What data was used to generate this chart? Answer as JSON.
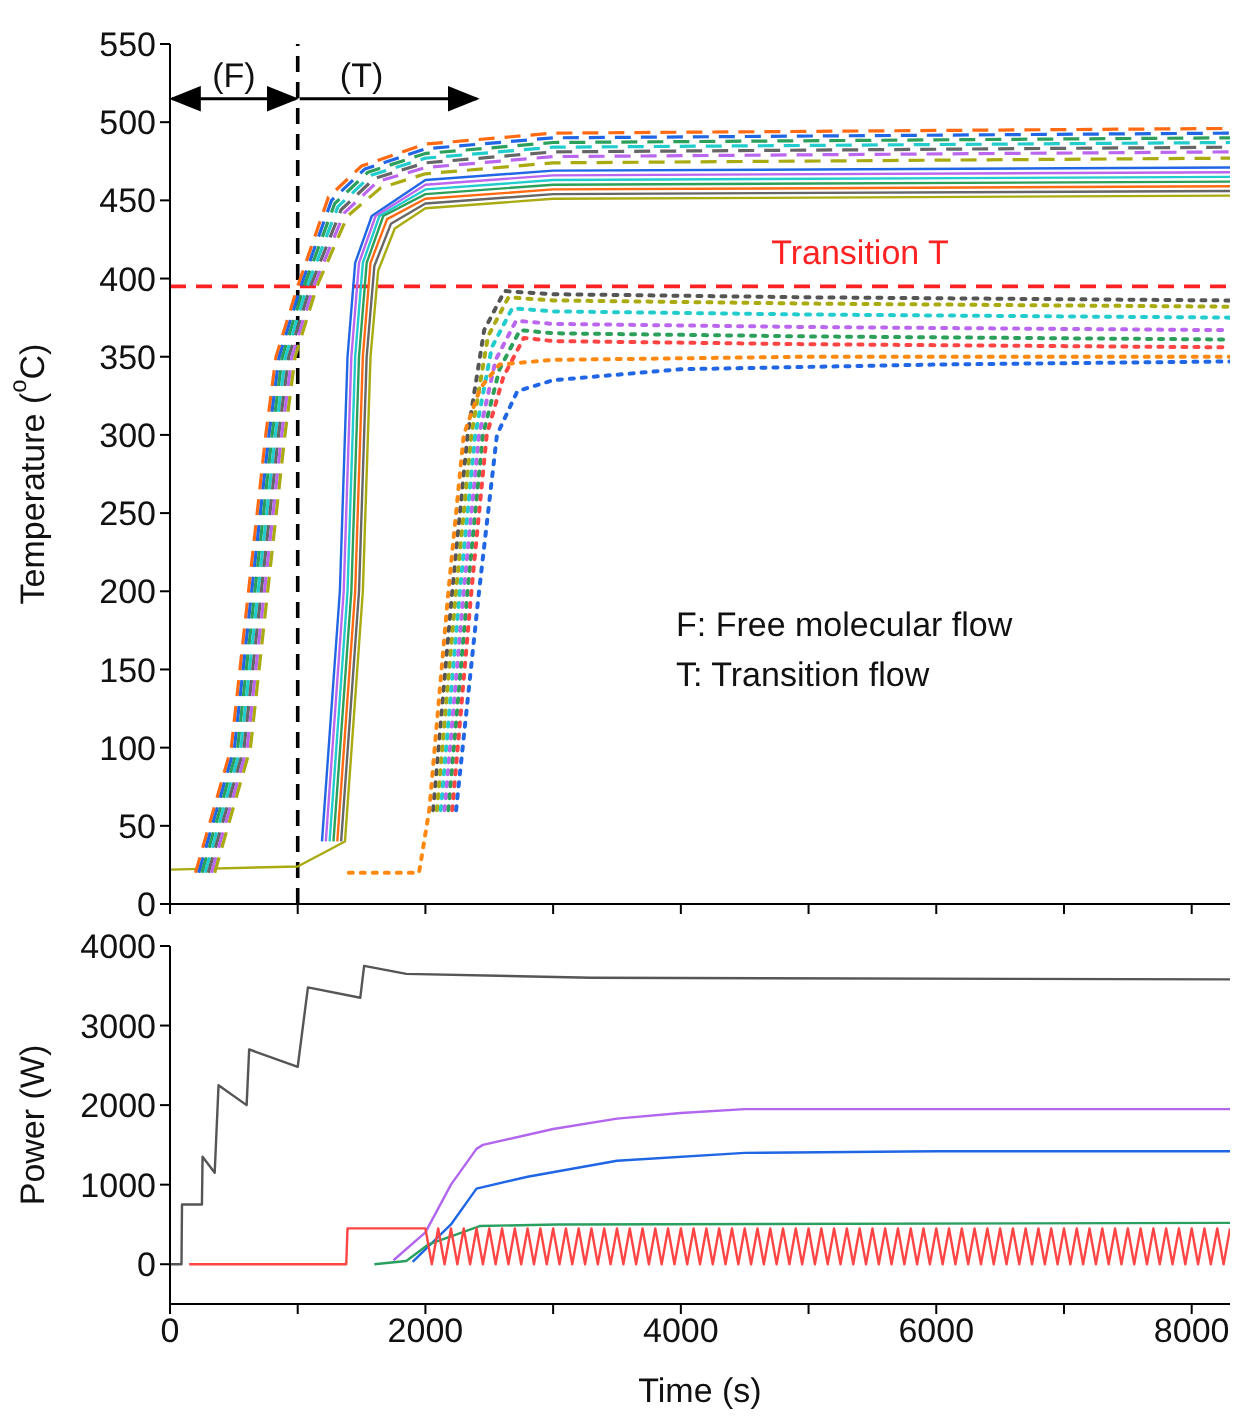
{
  "chart_data": [
    {
      "type": "line",
      "ylabel": "Temperature ($^{o}$C)",
      "xlim": [
        0,
        8300
      ],
      "xticks": [
        0,
        1000,
        2000,
        3000,
        4000,
        5000,
        6000,
        7000,
        8000
      ],
      "ylim": [
        0,
        550
      ],
      "yticks": [
        0,
        50,
        100,
        150,
        200,
        250,
        300,
        350,
        400,
        450,
        500,
        550
      ],
      "tick_labels": "y",
      "grid": false,
      "marker": "none",
      "ref_lines": [
        {
          "axis": "x",
          "value": 1000,
          "color": "#000000",
          "line_style": "dashed"
        },
        {
          "axis": "y",
          "value": 395,
          "label": "Transition T",
          "color": "#ff2222",
          "line_style": "dashed"
        }
      ],
      "annotations": [
        "(F)",
        "(T)",
        "F: Free molecular flow",
        "T: Transition flow"
      ],
      "series": [
        {
          "color": "#555555",
          "line_style": "dotted",
          "x": [
            2060,
            2210,
            2330,
            2460,
            2620,
            3000,
            5000,
            8300
          ],
          "values": [
            60,
            200,
            300,
            367,
            392,
            390,
            388,
            386
          ]
        },
        {
          "color": "#aaaa11",
          "line_style": "dotted",
          "x": [
            2090,
            2240,
            2360,
            2490,
            2650,
            3000,
            5000,
            8300
          ],
          "values": [
            60,
            200,
            300,
            363,
            388,
            386,
            384,
            382
          ]
        },
        {
          "color": "#22cccc",
          "line_style": "dotted",
          "x": [
            2120,
            2270,
            2390,
            2520,
            2680,
            3000,
            5000,
            8300
          ],
          "values": [
            60,
            200,
            300,
            356,
            381,
            379,
            377,
            375
          ]
        },
        {
          "color": "#bb66ee",
          "line_style": "dotted",
          "x": [
            2150,
            2300,
            2420,
            2550,
            2710,
            3000,
            5000,
            8300
          ],
          "values": [
            60,
            200,
            300,
            348,
            373,
            371,
            369,
            367
          ]
        },
        {
          "color": "#2ca05a",
          "line_style": "dotted",
          "x": [
            2180,
            2330,
            2450,
            2580,
            2740,
            3000,
            5000,
            8300
          ],
          "values": [
            60,
            200,
            300,
            342,
            367,
            365,
            363,
            361
          ]
        },
        {
          "color": "#ff4444",
          "line_style": "dotted",
          "x": [
            2210,
            2360,
            2480,
            2610,
            2770,
            3000,
            5000,
            8300
          ],
          "values": [
            60,
            200,
            300,
            337,
            362,
            360,
            358,
            356
          ]
        },
        {
          "color": "#2166e5",
          "line_style": "dotted",
          "x": [
            2240,
            2420,
            2560,
            2720,
            3000,
            4000,
            6000,
            8300
          ],
          "values": [
            60,
            200,
            300,
            328,
            335,
            342,
            345,
            347
          ]
        },
        {
          "color": "#ff8811",
          "line_style": "dotted",
          "x": [
            1400,
            1950,
            2030,
            2180,
            2300,
            2430,
            2580,
            3000,
            5000,
            8300
          ],
          "values": [
            20,
            20,
            60,
            200,
            300,
            330,
            345,
            348,
            350,
            350
          ]
        },
        {
          "color": "#2166e5",
          "line_style": "solid",
          "x": [
            1190,
            1330,
            1390,
            1450,
            1580,
            2000,
            3000,
            8300
          ],
          "values": [
            40,
            200,
            350,
            410,
            440,
            463,
            469,
            471
          ]
        },
        {
          "color": "#bb66ee",
          "line_style": "solid",
          "x": [
            1220,
            1360,
            1420,
            1480,
            1610,
            2000,
            3000,
            8300
          ],
          "values": [
            40,
            200,
            350,
            410,
            440,
            460,
            466,
            468
          ]
        },
        {
          "color": "#22cccc",
          "line_style": "solid",
          "x": [
            1250,
            1390,
            1450,
            1510,
            1640,
            2000,
            3000,
            8300
          ],
          "values": [
            40,
            200,
            350,
            410,
            440,
            457,
            463,
            465
          ]
        },
        {
          "color": "#2ca05a",
          "line_style": "solid",
          "x": [
            1280,
            1420,
            1480,
            1540,
            1670,
            2000,
            3000,
            8300
          ],
          "values": [
            40,
            200,
            350,
            410,
            440,
            454,
            460,
            462
          ]
        },
        {
          "color": "#ff6a13",
          "line_style": "solid",
          "x": [
            1310,
            1450,
            1510,
            1570,
            1700,
            2000,
            3000,
            8300
          ],
          "values": [
            40,
            200,
            350,
            410,
            438,
            451,
            457,
            459
          ]
        },
        {
          "color": "#666666",
          "line_style": "solid",
          "x": [
            1340,
            1480,
            1540,
            1600,
            1730,
            2000,
            3000,
            8300
          ],
          "values": [
            40,
            200,
            350,
            408,
            435,
            448,
            454,
            456
          ]
        },
        {
          "color": "#aaaa11",
          "line_style": "solid",
          "x": [
            0,
            1000,
            1370,
            1510,
            1570,
            1630,
            1760,
            2000,
            3000,
            8300
          ],
          "values": [
            22,
            24,
            40,
            200,
            350,
            405,
            432,
            445,
            451,
            453
          ]
        },
        {
          "color": "#ff6a13",
          "line_style": "dashed",
          "x": [
            200,
            480,
            750,
            830,
            1000,
            1240,
            1500,
            2000,
            3000,
            8300
          ],
          "values": [
            20,
            100,
            300,
            350,
            395,
            452,
            472,
            486,
            493,
            496
          ]
        },
        {
          "color": "#2166e5",
          "line_style": "dashed",
          "x": [
            225,
            505,
            775,
            855,
            1025,
            1265,
            1525,
            2000,
            3000,
            8300
          ],
          "values": [
            20,
            100,
            300,
            350,
            395,
            450,
            470,
            483,
            490,
            493
          ]
        },
        {
          "color": "#2ca05a",
          "line_style": "dashed",
          "x": [
            250,
            530,
            800,
            880,
            1050,
            1290,
            1550,
            2000,
            3000,
            8300
          ],
          "values": [
            20,
            100,
            300,
            350,
            395,
            448,
            468,
            480,
            487,
            490
          ]
        },
        {
          "color": "#22cccc",
          "line_style": "dashed",
          "x": [
            275,
            555,
            825,
            905,
            1075,
            1315,
            1575,
            2000,
            3000,
            8300
          ],
          "values": [
            20,
            100,
            300,
            350,
            395,
            446,
            466,
            477,
            484,
            487
          ]
        },
        {
          "color": "#666666",
          "line_style": "dashed",
          "x": [
            300,
            580,
            850,
            930,
            1100,
            1340,
            1600,
            2000,
            3000,
            8300
          ],
          "values": [
            20,
            100,
            300,
            350,
            395,
            444,
            464,
            474,
            481,
            484
          ]
        },
        {
          "color": "#bb66ee",
          "line_style": "dashed",
          "x": [
            325,
            605,
            875,
            955,
            1125,
            1365,
            1625,
            2000,
            3000,
            8300
          ],
          "values": [
            20,
            100,
            300,
            350,
            395,
            442,
            462,
            471,
            478,
            481
          ]
        },
        {
          "color": "#aaaa11",
          "line_style": "dashed",
          "x": [
            350,
            630,
            900,
            980,
            1150,
            1390,
            1650,
            2000,
            3000,
            8300
          ],
          "values": [
            20,
            100,
            300,
            350,
            395,
            440,
            458,
            467,
            474,
            477
          ]
        }
      ]
    },
    {
      "type": "line",
      "xlabel": "Time (s)",
      "ylabel": "Power (W)",
      "xlim": [
        0,
        8300
      ],
      "xticks": [
        0,
        {
          "value": 1000,
          "label": null
        },
        2000,
        {
          "value": 3000,
          "label": null
        },
        4000,
        {
          "value": 5000,
          "label": null
        },
        6000,
        {
          "value": 7000,
          "label": null
        },
        8000
      ],
      "ylim": [
        -500,
        4000
      ],
      "yticks": [
        0,
        1000,
        2000,
        3000,
        4000
      ],
      "grid": false,
      "marker": "none",
      "line_style": "solid",
      "series": [
        {
          "color": "#555555",
          "x": [
            0,
            90,
            94,
            250,
            255,
            350,
            380,
            600,
            620,
            1000,
            1080,
            1490,
            1520,
            1850,
            3300,
            8300
          ],
          "values": [
            0,
            0,
            750,
            750,
            1350,
            1150,
            2250,
            2000,
            2700,
            2480,
            3480,
            3350,
            3750,
            3650,
            3600,
            3580
          ]
        },
        {
          "color": "#b266ee",
          "x": [
            1750,
            2000,
            2200,
            2400,
            2450,
            3000,
            3500,
            4000,
            4500,
            6000,
            8300
          ],
          "values": [
            50,
            400,
            1000,
            1450,
            1500,
            1700,
            1830,
            1900,
            1950,
            1950,
            1950
          ]
        },
        {
          "color": "#1f66e5",
          "x": [
            1900,
            2200,
            2400,
            2800,
            3500,
            4500,
            6000,
            8300
          ],
          "values": [
            30,
            500,
            950,
            1100,
            1300,
            1400,
            1420,
            1420
          ]
        },
        {
          "color": "#2aa060",
          "x": [
            1600,
            1850,
            2025,
            2425,
            3025,
            8300
          ],
          "values": [
            0,
            40,
            250,
            480,
            500,
            520
          ]
        },
        {
          "color": "#ff4444",
          "x": [
            150,
            1380,
            1390,
            2000,
            2050,
            2100,
            2150,
            2200,
            2250,
            2300,
            2350,
            2400,
            2450,
            2500,
            2550,
            2600,
            2650,
            2700,
            2750,
            2800,
            2850,
            2900,
            2950,
            3000,
            3050,
            3100,
            3150,
            3200,
            3250,
            3300,
            3350,
            3400,
            3450,
            3500,
            3550,
            3600,
            3650,
            3700,
            3750,
            3800,
            3850,
            3900,
            3950,
            4000,
            4050,
            4100,
            4150,
            4200,
            4250,
            4300,
            4350,
            4400,
            4450,
            4500,
            4550,
            4600,
            4650,
            4700,
            4750,
            4800,
            4850,
            4900,
            4950,
            5000,
            5050,
            5100,
            5150,
            5200,
            5250,
            5300,
            5350,
            5400,
            5450,
            5500,
            5550,
            5600,
            5650,
            5700,
            5750,
            5800,
            5850,
            5900,
            5950,
            6000,
            6050,
            6100,
            6150,
            6200,
            6250,
            6300,
            6350,
            6400,
            6450,
            6500,
            6550,
            6600,
            6650,
            6700,
            6750,
            6800,
            6850,
            6900,
            6950,
            7000,
            7050,
            7100,
            7150,
            7200,
            7250,
            7300,
            7350,
            7400,
            7450,
            7500,
            7550,
            7600,
            7650,
            7700,
            7750,
            7800,
            7850,
            7900,
            7950,
            8000,
            8050,
            8100,
            8150,
            8200,
            8250,
            8300
          ],
          "values": [
            0,
            0,
            450,
            450,
            0,
            450,
            0,
            450,
            0,
            450,
            0,
            450,
            0,
            450,
            0,
            450,
            0,
            450,
            0,
            450,
            0,
            450,
            0,
            450,
            0,
            450,
            0,
            450,
            0,
            450,
            0,
            450,
            0,
            450,
            0,
            450,
            0,
            450,
            0,
            450,
            0,
            450,
            0,
            450,
            0,
            450,
            0,
            450,
            0,
            450,
            0,
            450,
            0,
            450,
            0,
            450,
            0,
            450,
            0,
            450,
            0,
            450,
            0,
            450,
            0,
            450,
            0,
            450,
            0,
            450,
            0,
            450,
            0,
            450,
            0,
            450,
            0,
            450,
            0,
            450,
            0,
            450,
            0,
            450,
            0,
            450,
            0,
            450,
            0,
            450,
            0,
            450,
            0,
            450,
            0,
            450,
            0,
            450,
            0,
            450,
            0,
            450,
            0,
            450,
            0,
            450,
            0,
            450,
            0,
            450,
            0,
            450,
            0,
            450,
            0,
            450,
            0,
            450,
            0,
            450,
            0,
            450,
            0,
            450,
            0,
            450,
            0,
            450,
            0,
            450
          ]
        }
      ]
    }
  ]
}
